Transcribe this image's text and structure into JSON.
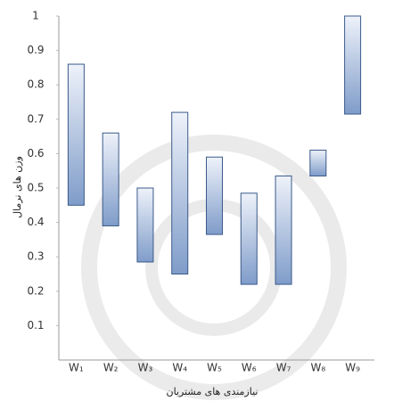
{
  "chart_data": {
    "type": "floating-bar",
    "y_label": "وزن های نرمال",
    "x_label": "نیازمندی های مشتریان",
    "categories": [
      "W₁",
      "W₂",
      "W₃",
      "W₄",
      "W₅",
      "W₆",
      "W₇",
      "W₈",
      "W₉"
    ],
    "low": [
      0.45,
      0.39,
      0.285,
      0.25,
      0.365,
      0.22,
      0.22,
      0.535,
      0.715
    ],
    "high": [
      0.86,
      0.66,
      0.5,
      0.72,
      0.59,
      0.485,
      0.535,
      0.61,
      1.0
    ],
    "color": "#7f9cc9",
    "ylim": [
      0,
      1
    ],
    "yticks": [
      0.1,
      0.2,
      0.3,
      0.4,
      0.5,
      0.6,
      0.7,
      0.8,
      0.9,
      1
    ]
  }
}
